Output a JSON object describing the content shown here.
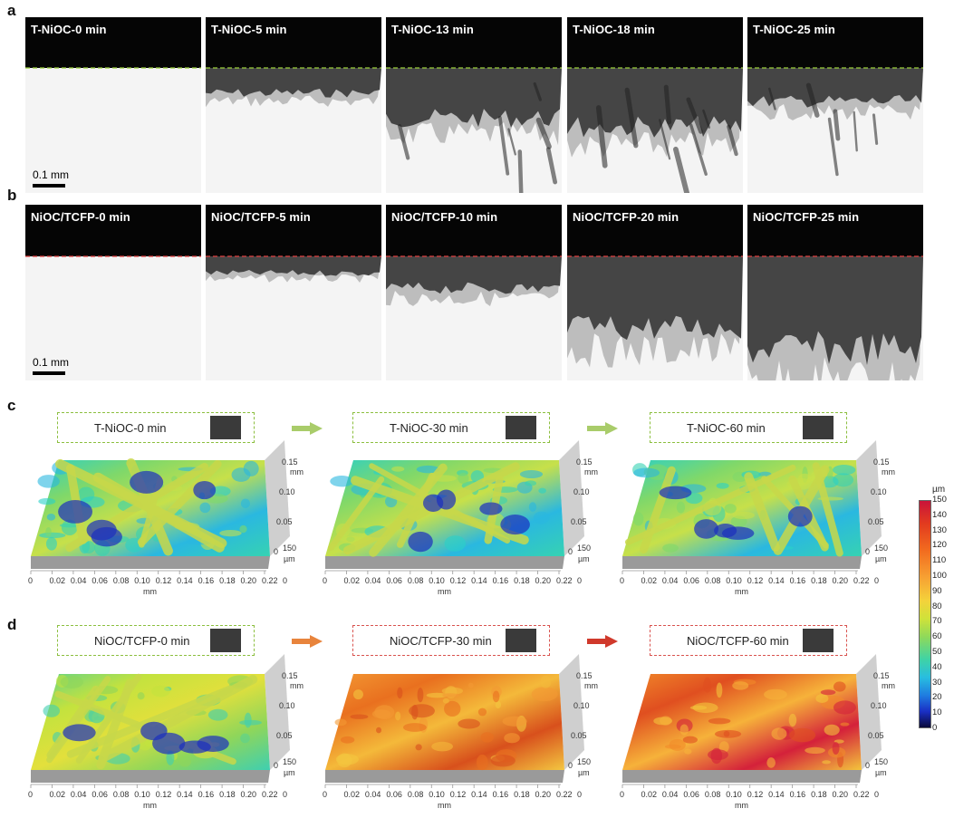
{
  "panels": {
    "a": {
      "letter": "a",
      "frames": [
        "T-NiOC-0 min",
        "T-NiOC-5 min",
        "T-NiOC-13 min",
        "T-NiOC-18 min",
        "T-NiOC-25 min"
      ],
      "scale": "0.1 mm",
      "guide_color": "#9bcf3a"
    },
    "b": {
      "letter": "b",
      "frames": [
        "NiOC/TCFP-0 min",
        "NiOC/TCFP-5 min",
        "NiOC/TCFP-10 min",
        "NiOC/TCFP-20 min",
        "NiOC/TCFP-25 min"
      ],
      "scale": "0.1 mm",
      "guide_color": "#e04040"
    },
    "c": {
      "letter": "c",
      "boxes": [
        "T-NiOC-0 min",
        "T-NiOC-30 min",
        "T-NiOC-60 min"
      ],
      "box_color": "#8cbf3f"
    },
    "d": {
      "letter": "d",
      "boxes": [
        "NiOC/TCFP-0 min",
        "NiOC/TCFP-30 min",
        "NiOC/TCFP-60 min"
      ],
      "box_colors": [
        "#8cbf3f",
        "#d9534f",
        "#d9534f"
      ]
    }
  },
  "axes": {
    "x_ticks": [
      "0",
      "0.02",
      "0.04",
      "0.06",
      "0.08",
      "0.10",
      "0.12",
      "0.14",
      "0.16",
      "0.18",
      "0.20",
      "0.22"
    ],
    "x_unit": "mm",
    "y_ticks": [
      "0",
      "0.05",
      "0.10",
      "0.15"
    ],
    "y_unit": "mm",
    "z_ticks": [
      "0",
      "150"
    ],
    "z_unit": "µm"
  },
  "colorbar": {
    "unit": "µm",
    "ticks": [
      "150",
      "140",
      "130",
      "120",
      "110",
      "100",
      "90",
      "80",
      "70",
      "60",
      "50",
      "40",
      "30",
      "20",
      "10",
      "0"
    ]
  }
}
